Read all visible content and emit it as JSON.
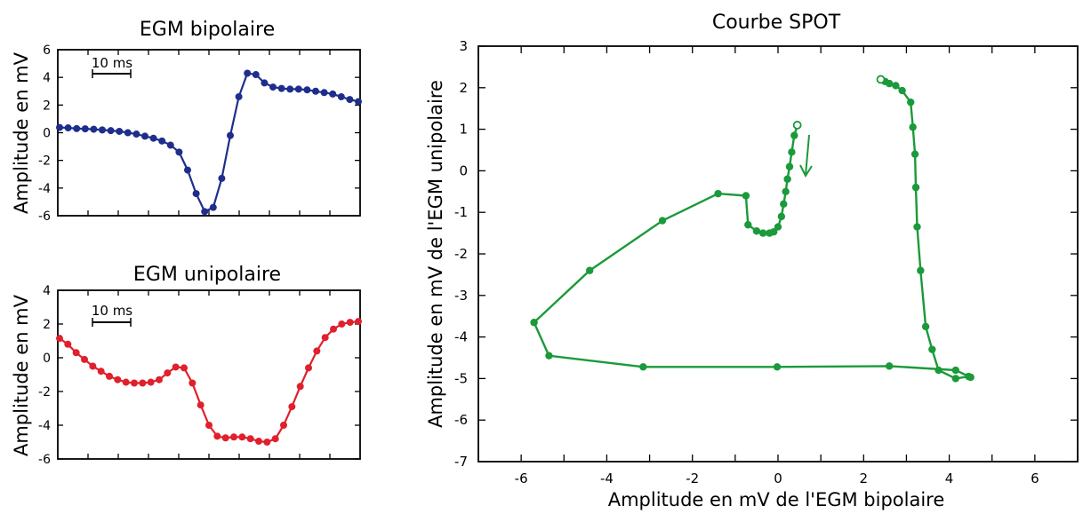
{
  "chart_data": [
    {
      "type": "line",
      "title": "EGM bipolaire",
      "ylabel": "Amplitude en mV",
      "xlabel": "",
      "ylim": [
        -6,
        6
      ],
      "yticks": [
        6,
        4,
        2,
        0,
        -2,
        -4,
        -6
      ],
      "scale_bar": "10 ms",
      "color": "#1f2e8c",
      "series": [
        {
          "values": [
            0.38,
            0.35,
            0.3,
            0.28,
            0.25,
            0.2,
            0.15,
            0.1,
            0.0,
            -0.1,
            -0.25,
            -0.4,
            -0.6,
            -0.9,
            -1.4,
            -2.7,
            -4.4,
            -5.7,
            -5.4,
            -3.3,
            -0.2,
            2.6,
            4.3,
            4.2,
            3.6,
            3.3,
            3.2,
            3.15,
            3.15,
            3.1,
            3.0,
            2.9,
            2.8,
            2.6,
            2.4,
            2.25
          ]
        }
      ]
    },
    {
      "type": "line",
      "title": "EGM unipolaire",
      "ylabel": "Amplitude en mV",
      "xlabel": "",
      "ylim": [
        -6,
        4
      ],
      "yticks": [
        4,
        2,
        0,
        -2,
        -4,
        -6
      ],
      "scale_bar": "10 ms",
      "color": "#e0202d",
      "series": [
        {
          "values": [
            1.15,
            0.8,
            0.3,
            -0.1,
            -0.5,
            -0.8,
            -1.1,
            -1.3,
            -1.45,
            -1.5,
            -1.5,
            -1.45,
            -1.3,
            -0.9,
            -0.55,
            -0.6,
            -1.5,
            -2.8,
            -4.0,
            -4.65,
            -4.75,
            -4.7,
            -4.7,
            -4.8,
            -4.95,
            -5.0,
            -4.8,
            -4.0,
            -2.9,
            -1.7,
            -0.6,
            0.4,
            1.2,
            1.7,
            2.0,
            2.1,
            2.15
          ]
        }
      ]
    },
    {
      "type": "scatter",
      "title": "Courbe SPOT",
      "xlabel": "Amplitude en mV de l'EGM bipolaire",
      "ylabel": "Amplitude en mV de l'EGM unipolaire",
      "xlim": [
        -7,
        7
      ],
      "ylim": [
        -7,
        3
      ],
      "xticks": [
        -6,
        -4,
        -2,
        0,
        2,
        4,
        6
      ],
      "yticks": [
        3,
        2,
        1,
        0,
        -1,
        -2,
        -3,
        -4,
        -5,
        -6,
        -7
      ],
      "color": "#1a9a3a",
      "series": [
        {
          "x": [
            0.45,
            0.38,
            0.32,
            0.27,
            0.22,
            0.18,
            0.13,
            0.08,
            0.0,
            -0.1,
            -0.2,
            -0.35,
            -0.5,
            -0.7,
            -0.75,
            -1.4,
            -2.7,
            -4.4,
            -5.7,
            -5.35,
            -3.15,
            -0.02,
            2.6,
            4.15,
            4.5,
            4.45,
            4.15,
            3.75,
            3.6,
            3.45,
            3.33,
            3.25,
            3.22,
            3.2,
            3.15,
            3.1,
            2.9,
            2.75,
            2.6,
            2.5,
            2.4
          ],
          "y": [
            1.1,
            0.85,
            0.45,
            0.1,
            -0.2,
            -0.5,
            -0.8,
            -1.1,
            -1.35,
            -1.47,
            -1.5,
            -1.5,
            -1.45,
            -1.3,
            -0.6,
            -0.55,
            -1.2,
            -2.4,
            -3.65,
            -4.45,
            -4.72,
            -4.72,
            -4.7,
            -4.8,
            -4.97,
            -4.95,
            -5.0,
            -4.8,
            -4.3,
            -3.75,
            -2.4,
            -1.35,
            -0.4,
            0.4,
            1.05,
            1.65,
            1.93,
            2.05,
            2.1,
            2.15,
            2.2
          ]
        }
      ]
    }
  ]
}
